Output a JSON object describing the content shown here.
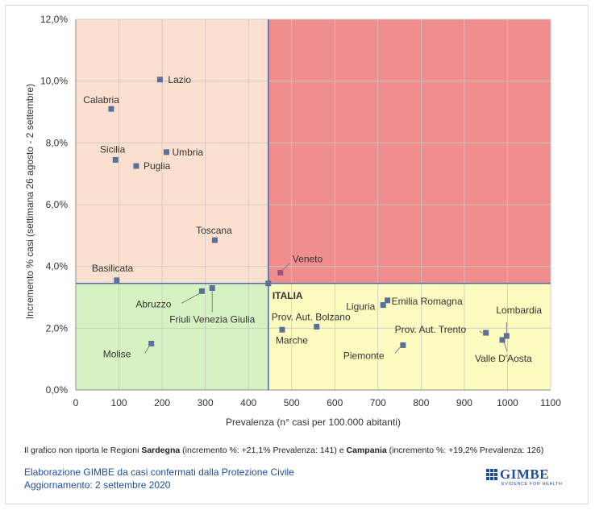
{
  "chart_data": {
    "type": "scatter",
    "xlabel": "Prevalenza  (n° casi per 100.000 abitanti)",
    "ylabel": "Incremento %  casi (settimana 26 agosto - 2 settembre)",
    "xlim": [
      0,
      1100
    ],
    "ylim": [
      0,
      12
    ],
    "x_ticks": [
      "0",
      "100",
      "200",
      "300",
      "400",
      "500",
      "600",
      "700",
      "800",
      "900",
      "1000",
      "1100"
    ],
    "y_ticks": [
      "0,0%",
      "2,0%",
      "4,0%",
      "6,0%",
      "8,0%",
      "10,0%",
      "12,0%"
    ],
    "reference": {
      "label": "ITALIA",
      "x": 446,
      "y": 3.45
    },
    "quadrant_colors": {
      "top_left": "#fbe0cf",
      "top_right": "#f08e8e",
      "bottom_left": "#d6f2c2",
      "bottom_right": "#fcfcc0"
    },
    "line_color": "#4a6ea8",
    "marker_color": "#5a6f9a",
    "points": [
      {
        "label": "Lazio",
        "x": 195,
        "y": 10.05
      },
      {
        "label": "Calabria",
        "x": 82,
        "y": 9.1
      },
      {
        "label": "Umbria",
        "x": 210,
        "y": 7.7
      },
      {
        "label": "Sicilia",
        "x": 92,
        "y": 7.45
      },
      {
        "label": "Puglia",
        "x": 140,
        "y": 7.25
      },
      {
        "label": "Toscana",
        "x": 322,
        "y": 4.85
      },
      {
        "label": "Veneto",
        "x": 474,
        "y": 3.8
      },
      {
        "label": "Basilicata",
        "x": 95,
        "y": 3.55
      },
      {
        "label": "Abruzzo",
        "x": 292,
        "y": 3.2
      },
      {
        "label": "Friuli Venezia Giulia",
        "x": 316,
        "y": 3.3
      },
      {
        "label": "Emilia Romagna",
        "x": 722,
        "y": 2.9
      },
      {
        "label": "Liguria",
        "x": 712,
        "y": 2.75
      },
      {
        "label": "Prov. Aut. Bolzano",
        "x": 558,
        "y": 2.05
      },
      {
        "label": "Marche",
        "x": 478,
        "y": 1.95
      },
      {
        "label": "Prov. Aut. Trento",
        "x": 950,
        "y": 1.85
      },
      {
        "label": "Lombardia",
        "x": 998,
        "y": 1.75
      },
      {
        "label": "Valle D'Aosta",
        "x": 988,
        "y": 1.62
      },
      {
        "label": "Molise",
        "x": 175,
        "y": 1.5
      },
      {
        "label": "Piemonte",
        "x": 758,
        "y": 1.45
      }
    ]
  },
  "footnote": {
    "part1": "Il grafico non riporta le Regioni ",
    "region1": "Sardegna",
    "part2": " (incremento %: +21,1% Prevalenza: 141) e ",
    "region2": "Campania",
    "part3": " (incremento %: +19,2% Prevalenza: 126)"
  },
  "source": {
    "line1": "Elaborazione GIMBE da casi confermati dalla Protezione Civile",
    "line2": "Aggiornamento: 2 settembre 2020"
  },
  "logo": {
    "name": "GIMBE",
    "tagline": "EVIDENCE FOR HEALTH"
  }
}
